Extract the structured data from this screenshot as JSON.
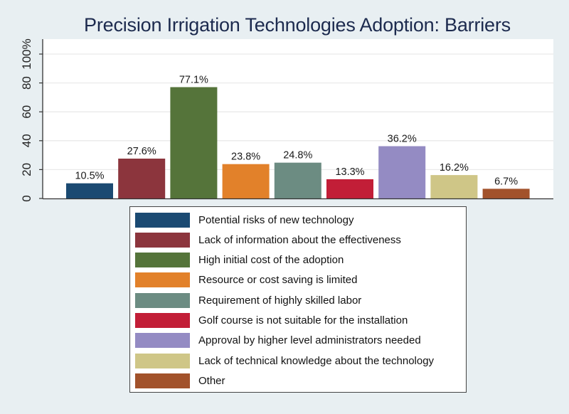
{
  "chart_data": {
    "type": "bar",
    "title": "Precision Irrigation Technologies Adoption: Barriers",
    "xlabel": "",
    "ylabel": "",
    "ylim": [
      0,
      100
    ],
    "yticks": [
      0,
      20,
      40,
      60,
      80,
      100
    ],
    "ytick_labels": [
      "0",
      "20",
      "40",
      "60",
      "80",
      "100%"
    ],
    "grid": true,
    "legend_position": "bottom",
    "categories": [
      "Potential risks of new technology",
      "Lack of information about the effectiveness",
      "High initial cost of the adoption",
      "Resource or cost saving is limited",
      "Requirement of highly skilled labor",
      "Golf course is not suitable for the installation",
      "Approval by higher level administrators needed",
      "Lack of technical knowledge about the technology",
      "Other"
    ],
    "values": [
      10.5,
      27.6,
      77.1,
      23.8,
      24.8,
      13.3,
      36.2,
      16.2,
      6.7
    ],
    "data_labels": [
      "10.5%",
      "27.6%",
      "77.1%",
      "23.8%",
      "24.8%",
      "13.3%",
      "36.2%",
      "16.2%",
      "6.7%"
    ],
    "colors": [
      "#1b4a72",
      "#8c353d",
      "#55743a",
      "#e2812a",
      "#6c8c82",
      "#c21e37",
      "#948bc3",
      "#cfc687",
      "#a2522b"
    ]
  }
}
